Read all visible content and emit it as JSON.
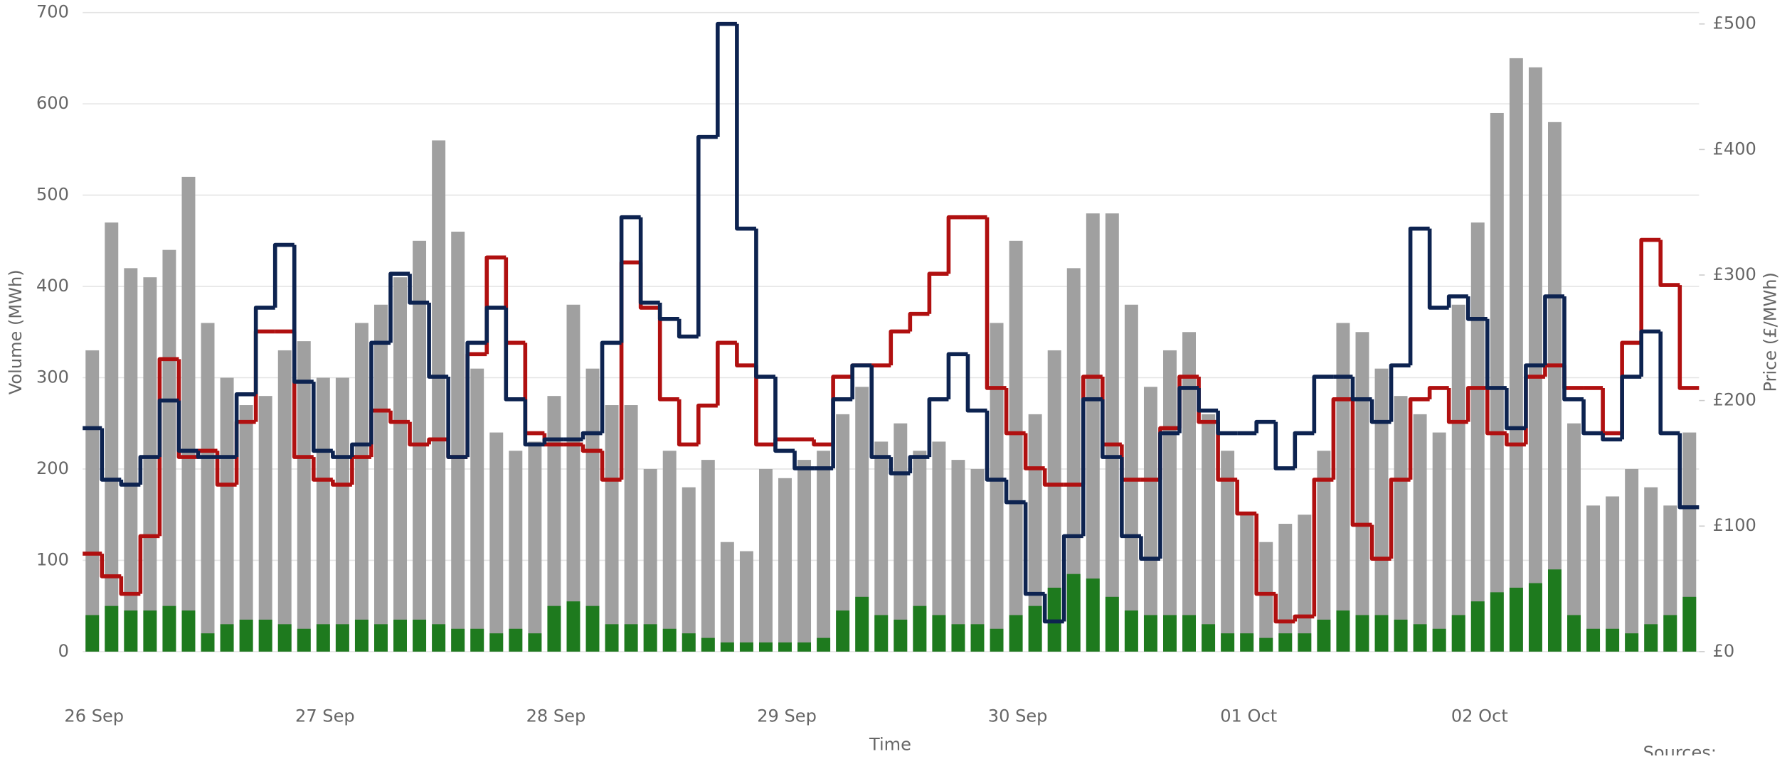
{
  "chart_data": {
    "type": "bar",
    "ylabel": "Volume (MWh)",
    "y2label": "Price (£/MWh)",
    "xlabel": "Time",
    "footer": "Sources:",
    "categories": [
      "26 Sep",
      null,
      null,
      null,
      null,
      null,
      null,
      null,
      null,
      null,
      null,
      null,
      "27 Sep",
      null,
      null,
      null,
      null,
      null,
      null,
      null,
      null,
      null,
      null,
      null,
      "28 Sep",
      null,
      null,
      null,
      null,
      null,
      null,
      null,
      null,
      null,
      null,
      null,
      "29 Sep",
      null,
      null,
      null,
      null,
      null,
      null,
      null,
      null,
      null,
      null,
      null,
      "30 Sep",
      null,
      null,
      null,
      null,
      null,
      null,
      null,
      null,
      null,
      null,
      null,
      "01 Oct",
      null,
      null,
      null,
      null,
      null,
      null,
      null,
      null,
      null,
      null,
      null,
      "02 Oct",
      null,
      null,
      null,
      null,
      null,
      null,
      null,
      null,
      null,
      null,
      null
    ],
    "ylim": [
      0,
      700
    ],
    "yticks": [
      0,
      100,
      200,
      300,
      400,
      500,
      600,
      700
    ],
    "y2lim": [
      0,
      500
    ],
    "y2ticks": [
      {
        "value": 0,
        "label": "£0"
      },
      {
        "value": 100,
        "label": "£100"
      },
      {
        "value": 200,
        "label": "£200"
      },
      {
        "value": 300,
        "label": "£300"
      },
      {
        "value": 400,
        "label": "£400"
      },
      {
        "value": 500,
        "label": "£500"
      }
    ],
    "grid": true,
    "series": [
      {
        "type": "bar",
        "color": "#a0a0a0",
        "values": [
          330,
          470,
          420,
          410,
          440,
          520,
          360,
          300,
          270,
          280,
          330,
          340,
          300,
          300,
          360,
          380,
          410,
          450,
          560,
          460,
          310,
          240,
          220,
          230,
          280,
          380,
          310,
          270,
          270,
          200,
          220,
          180,
          210,
          120,
          110,
          200,
          190,
          210,
          220,
          260,
          290,
          230,
          250,
          220,
          230,
          210,
          200,
          360,
          450,
          260,
          330,
          420,
          480,
          480,
          380,
          290,
          330,
          350,
          260,
          220,
          150,
          120,
          140,
          150,
          220,
          360,
          350,
          310,
          280,
          260,
          240,
          380,
          470,
          590,
          650,
          640,
          580,
          250,
          160,
          170,
          200,
          180,
          160,
          240
        ]
      },
      {
        "type": "bar",
        "color": "#1e7a1e",
        "values": [
          40,
          50,
          45,
          45,
          50,
          45,
          20,
          30,
          35,
          35,
          30,
          25,
          30,
          30,
          35,
          30,
          35,
          35,
          30,
          25,
          25,
          20,
          25,
          20,
          50,
          55,
          50,
          30,
          30,
          30,
          25,
          20,
          15,
          10,
          10,
          10,
          10,
          10,
          15,
          45,
          60,
          40,
          35,
          50,
          40,
          30,
          30,
          25,
          40,
          50,
          70,
          85,
          80,
          60,
          45,
          40,
          40,
          40,
          30,
          20,
          20,
          15,
          20,
          20,
          35,
          45,
          40,
          40,
          35,
          30,
          25,
          40,
          55,
          65,
          70,
          75,
          90,
          40,
          25,
          25,
          20,
          30,
          40,
          60
        ]
      },
      {
        "type": "step",
        "axis": "y2",
        "color": "#b01010",
        "values": [
          78,
          60,
          46,
          92,
          233,
          155,
          160,
          133,
          183,
          255,
          255,
          155,
          137,
          133,
          155,
          192,
          183,
          165,
          169,
          155,
          237,
          314,
          246,
          174,
          165,
          165,
          160,
          137,
          310,
          274,
          201,
          165,
          196,
          246,
          228,
          165,
          169,
          169,
          165,
          219,
          228,
          228,
          255,
          269,
          301,
          346,
          346,
          210,
          174,
          146,
          133,
          133,
          219,
          165,
          137,
          137,
          178,
          219,
          183,
          137,
          110,
          46,
          24,
          28,
          137,
          201,
          101,
          74,
          137,
          201,
          210,
          183,
          210,
          174,
          165,
          219,
          228,
          210,
          210,
          174,
          246,
          328,
          292,
          210
        ]
      },
      {
        "type": "step",
        "axis": "y2",
        "color": "#0d2350",
        "values": [
          178,
          137,
          133,
          155,
          200,
          160,
          155,
          155,
          205,
          274,
          324,
          215,
          160,
          155,
          165,
          246,
          301,
          278,
          219,
          155,
          246,
          274,
          201,
          165,
          169,
          169,
          174,
          246,
          346,
          278,
          265,
          251,
          410,
          500,
          337,
          219,
          160,
          146,
          146,
          201,
          228,
          155,
          142,
          155,
          201,
          237,
          192,
          137,
          119,
          46,
          24,
          92,
          201,
          155,
          92,
          74,
          174,
          210,
          192,
          174,
          174,
          183,
          146,
          174,
          219,
          219,
          201,
          183,
          228,
          337,
          274,
          283,
          265,
          210,
          178,
          228,
          283,
          201,
          174,
          169,
          219,
          255,
          174,
          115
        ]
      }
    ]
  }
}
